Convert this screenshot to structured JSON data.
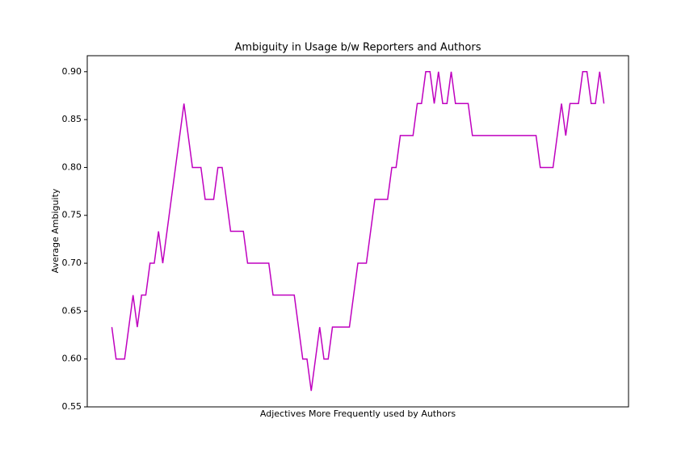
{
  "chart_data": {
    "type": "line",
    "title": "Ambiguity in Usage b/w Reporters and Authors",
    "xlabel": "Adjectives More Frequently used by Authors",
    "ylabel": "Average Ambiguity",
    "series": [
      {
        "color": "#bf00bf",
        "values": [
          0.6333,
          0.6,
          0.6,
          0.6,
          0.6333,
          0.6667,
          0.6333,
          0.6667,
          0.6667,
          0.7,
          0.7,
          0.7333,
          0.7,
          0.7333,
          0.7667,
          0.8,
          0.8333,
          0.8667,
          0.8333,
          0.8,
          0.8,
          0.8,
          0.7667,
          0.7667,
          0.7667,
          0.8,
          0.8,
          0.7667,
          0.7333,
          0.7333,
          0.7333,
          0.7333,
          0.7,
          0.7,
          0.7,
          0.7,
          0.7,
          0.7,
          0.6667,
          0.6667,
          0.6667,
          0.6667,
          0.6667,
          0.6667,
          0.6333,
          0.6,
          0.6,
          0.5667,
          0.6,
          0.6333,
          0.6,
          0.6,
          0.6333,
          0.6333,
          0.6333,
          0.6333,
          0.6333,
          0.6667,
          0.7,
          0.7,
          0.7,
          0.7333,
          0.7667,
          0.7667,
          0.7667,
          0.7667,
          0.8,
          0.8,
          0.8333,
          0.8333,
          0.8333,
          0.8333,
          0.8667,
          0.8667,
          0.9,
          0.9,
          0.8667,
          0.9,
          0.8667,
          0.8667,
          0.9,
          0.8667,
          0.8667,
          0.8667,
          0.8667,
          0.8333,
          0.8333,
          0.8333,
          0.8333,
          0.8333,
          0.8333,
          0.8333,
          0.8333,
          0.8333,
          0.8333,
          0.8333,
          0.8333,
          0.8333,
          0.8333,
          0.8333,
          0.8333,
          0.8,
          0.8,
          0.8,
          0.8,
          0.8333,
          0.8667,
          0.8333,
          0.8667,
          0.8667,
          0.8667,
          0.9,
          0.9,
          0.8667,
          0.8667,
          0.9,
          0.8667
        ]
      }
    ],
    "ylim": [
      0.55,
      0.9167
    ],
    "yticks": [
      {
        "value": 0.55,
        "label": "0.55"
      },
      {
        "value": 0.6,
        "label": "0.60"
      },
      {
        "value": 0.65,
        "label": "0.65"
      },
      {
        "value": 0.7,
        "label": "0.70"
      },
      {
        "value": 0.75,
        "label": "0.75"
      },
      {
        "value": 0.8,
        "label": "0.80"
      },
      {
        "value": 0.85,
        "label": "0.85"
      },
      {
        "value": 0.9,
        "label": "0.90"
      }
    ]
  }
}
